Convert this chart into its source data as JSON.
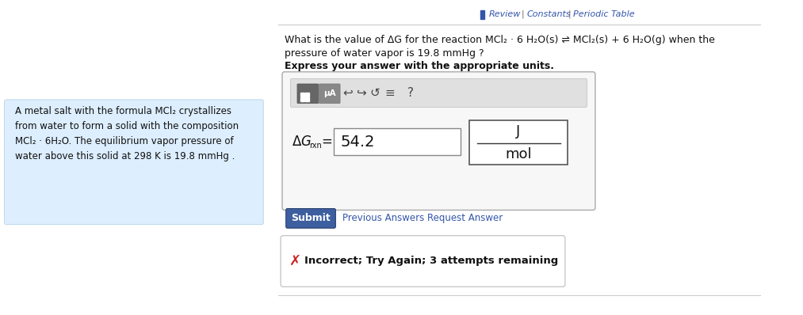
{
  "bg_color": "#ffffff",
  "left_panel_bg": "#ddeeff",
  "left_panel_text": [
    "A metal salt with the formula MCl₂ crystallizes",
    "from water to form a solid with the composition",
    "MCl₂ · 6H₂O. The equilibrium vapor pressure of",
    "water above this solid at 298 K is 19.8 mmHg ."
  ],
  "question_line1": "What is the value of ΔG for the reaction MCl₂ · 6 H₂O(s) ⇌ MCl₂(s) + 6 H₂O(g) when the",
  "question_line2": "pressure of water vapor is 19.8 mmHg ?",
  "express_label": "Express your answer with the appropriate units.",
  "answer_value": "54.2",
  "unit_numerator": "J",
  "unit_denominator": "mol",
  "submit_btn_text": "Submit",
  "submit_btn_bg": "#3d5fa0",
  "submit_btn_fg": "#ffffff",
  "prev_answers_text": "Previous Answers",
  "request_answer_text": "Request Answer",
  "incorrect_text": "Incorrect; Try Again; 3 attempts remaining",
  "incorrect_x_color": "#cc2222",
  "link_color": "#3355aa",
  "divider_color": "#cccccc",
  "toolbar_bg": "#e0e0e0",
  "input_box_border": "#888888",
  "unit_box_border": "#555555"
}
